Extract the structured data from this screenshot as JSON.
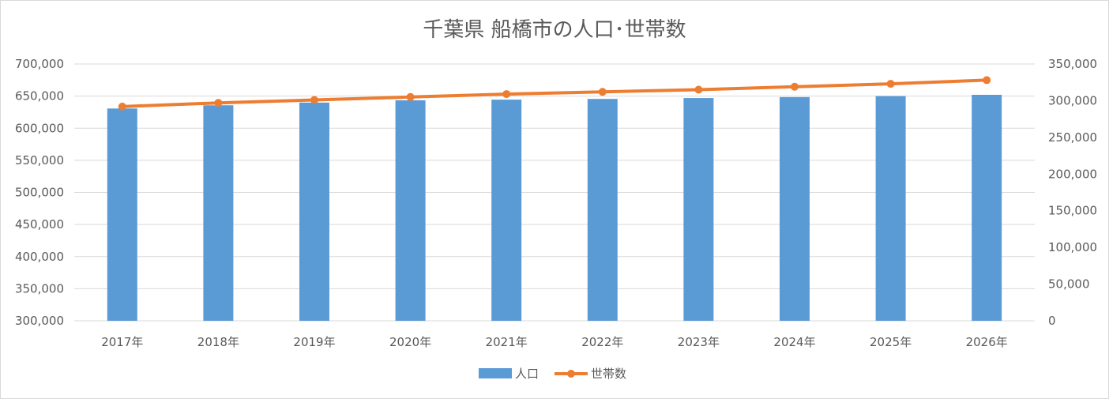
{
  "chart_data": {
    "type": "bar+line",
    "title": "千葉県 船橋市の人口･世帯数",
    "categories": [
      "2017年",
      "2018年",
      "2019年",
      "2020年",
      "2021年",
      "2022年",
      "2023年",
      "2024年",
      "2025年",
      "2026年"
    ],
    "series": [
      {
        "name": "人口",
        "type": "bar",
        "axis": "left",
        "color": "#5b9bd5",
        "values": [
          630700,
          635700,
          639900,
          643500,
          644500,
          645600,
          647000,
          648500,
          650000,
          652000
        ]
      },
      {
        "name": "世帯数",
        "type": "line",
        "axis": "right",
        "color": "#ed7d31",
        "values": [
          292000,
          297000,
          301000,
          305000,
          309000,
          312000,
          315000,
          319000,
          323000,
          328000
        ]
      }
    ],
    "y_left": {
      "min": 300000,
      "max": 700000,
      "step": 50000,
      "ticks": [
        "300,000",
        "350,000",
        "400,000",
        "450,000",
        "500,000",
        "550,000",
        "600,000",
        "650,000",
        "700,000"
      ]
    },
    "y_right": {
      "min": 0,
      "max": 350000,
      "step": 50000,
      "ticks": [
        "0",
        "50,000",
        "100,000",
        "150,000",
        "200,000",
        "250,000",
        "300,000",
        "350,000"
      ]
    },
    "grid": true,
    "legend_position": "bottom-center",
    "gridline_color": "#d9d9d9",
    "text_color": "#595959"
  }
}
